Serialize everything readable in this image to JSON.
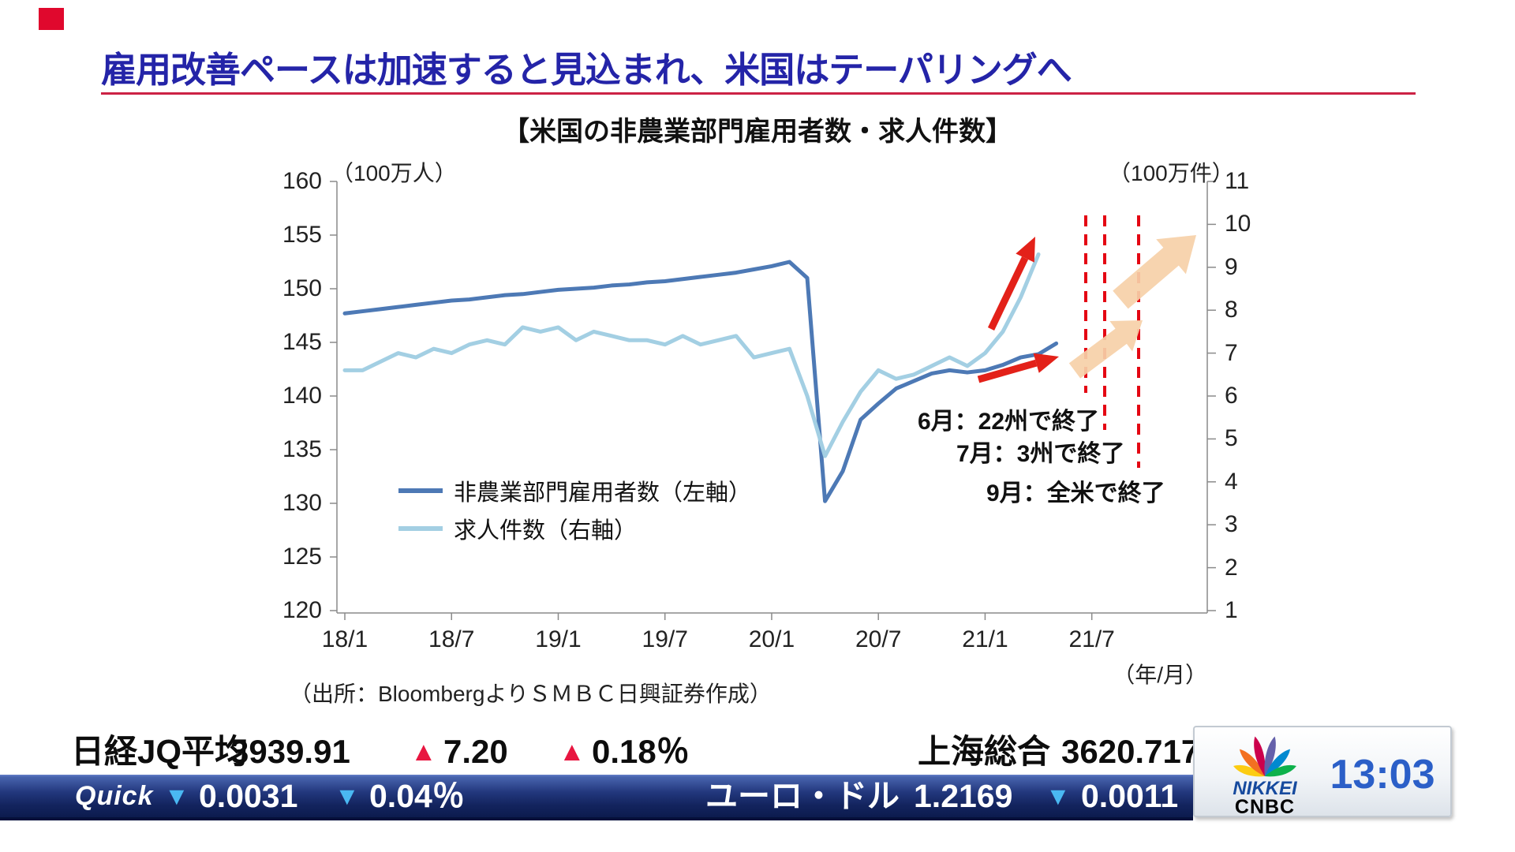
{
  "page": {
    "title": "雇用改善ペースは加速すると見込まれ、米国はテーパリングへ",
    "source": "（出所：BloombergよりＳＭＢＣ日興証券作成）"
  },
  "chart_data": {
    "type": "line",
    "title": "【米国の非農業部門雇用者数・求人件数】",
    "left_axis": {
      "unit": "（100万人）",
      "min": 120,
      "max": 160,
      "step": 5,
      "ticks": [
        "160",
        "155",
        "150",
        "145",
        "140",
        "135",
        "130",
        "125",
        "120"
      ]
    },
    "right_axis": {
      "unit": "（100万件）",
      "min": 1,
      "max": 11,
      "step": 1,
      "ticks": [
        "11",
        "10",
        "9",
        "8",
        "7",
        "6",
        "5",
        "4",
        "3",
        "2",
        "1"
      ]
    },
    "x_axis": {
      "unit": "（年/月）",
      "start": "2018/1",
      "tick_labels": [
        "18/1",
        "18/7",
        "19/1",
        "19/7",
        "20/1",
        "20/7",
        "21/1",
        "21/7"
      ],
      "tick_months": [
        0,
        6,
        12,
        18,
        24,
        30,
        36,
        42
      ]
    },
    "series": [
      {
        "name": "非農業部門雇用者数（左軸）",
        "axis": "left",
        "color": "#4d79b5",
        "start_month": "2018/1",
        "values": [
          147.7,
          147.9,
          148.1,
          148.3,
          148.5,
          148.7,
          148.9,
          149.0,
          149.2,
          149.4,
          149.5,
          149.7,
          149.9,
          150.0,
          150.1,
          150.3,
          150.4,
          150.6,
          150.7,
          150.9,
          151.1,
          151.3,
          151.5,
          151.8,
          152.1,
          152.5,
          151.0,
          130.2,
          133.0,
          137.8,
          139.3,
          140.7,
          141.4,
          142.1,
          142.4,
          142.2,
          142.4,
          142.9,
          143.6,
          143.9,
          144.9
        ]
      },
      {
        "name": "求人件数（右軸）",
        "axis": "right",
        "color": "#a3cfe3",
        "start_month": "2018/1",
        "values": [
          6.6,
          6.6,
          6.8,
          7.0,
          6.9,
          7.1,
          7.0,
          7.2,
          7.3,
          7.2,
          7.6,
          7.5,
          7.6,
          7.3,
          7.5,
          7.4,
          7.3,
          7.3,
          7.2,
          7.4,
          7.2,
          7.3,
          7.4,
          6.9,
          7.0,
          7.1,
          6.0,
          4.6,
          5.4,
          6.1,
          6.6,
          6.4,
          6.5,
          6.7,
          6.9,
          6.7,
          7.0,
          7.5,
          8.3,
          9.3
        ]
      }
    ],
    "annotations": [
      {
        "text": "6月：22州で終了",
        "month": "21/6"
      },
      {
        "text": "7月：3州で終了",
        "month": "21/7"
      },
      {
        "text": "9月：全米で終了",
        "month": "21/9"
      }
    ],
    "colors": {
      "dashed_event_line": "#e40613",
      "trend_arrow_red": "#e32119",
      "forecast_arrow_peach": "#f6d0a8"
    }
  },
  "ticker": {
    "row1": {
      "left_name": "日経JQ平均",
      "left_value": "3939.91",
      "up_triangle": "▲",
      "left_change": "7.20",
      "left_change_pct": "0.18％",
      "right_name": "上海総合",
      "right_value": "3620.717"
    },
    "row2": {
      "brand": "Quick",
      "down_triangle": "▼",
      "change": "0.0031",
      "change_pct": "0.04％",
      "pair_name": "ユーロ・ドル",
      "pair_value": "1.2169",
      "pair_change": "0.0011"
    }
  },
  "logo": {
    "brand_line1": "NIKKEI",
    "brand_line2": "CNBC",
    "time": "13:03"
  }
}
